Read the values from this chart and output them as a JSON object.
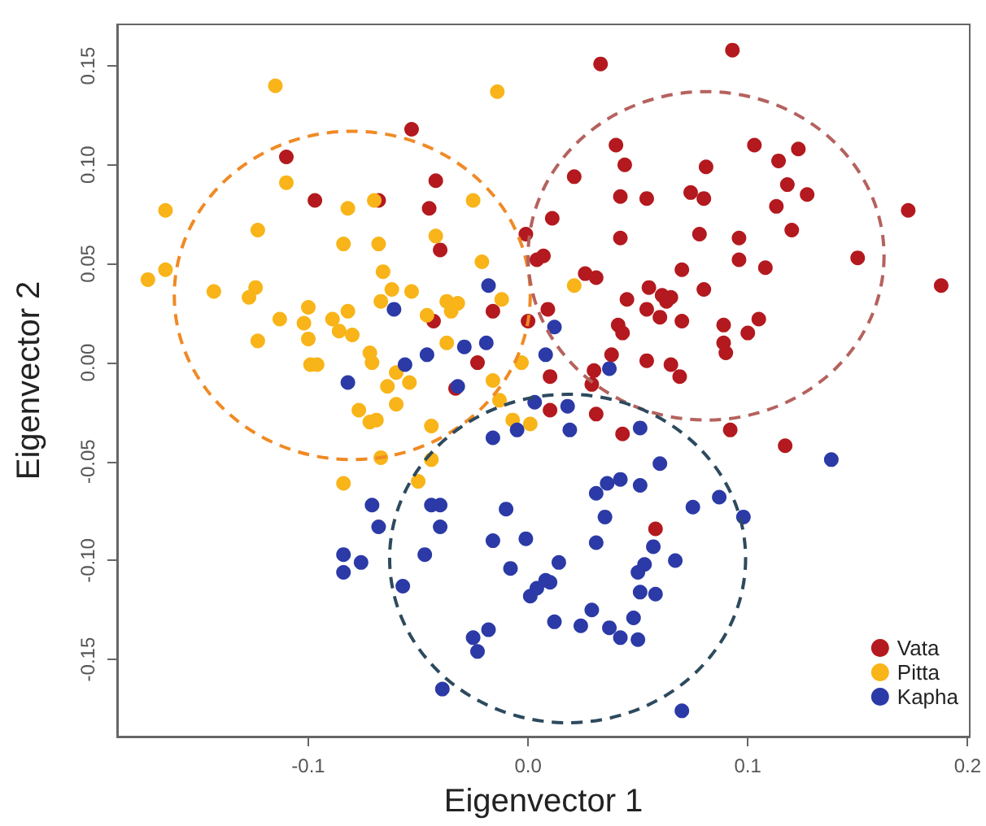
{
  "chart_data": {
    "type": "scatter",
    "xlabel": "Eigenvector 1",
    "ylabel": "Eigenvector 2",
    "xlim": [
      -0.187,
      0.201
    ],
    "ylim": [
      -0.189,
      0.171
    ],
    "xticks": [
      -0.1,
      {
        "value": 0,
        "label": "0.0"
      },
      0.1,
      0.2
    ],
    "yticks": [
      -0.15,
      {
        "value": -0.1,
        "label": "-0.10"
      },
      -0.05,
      {
        "value": 0,
        "label": "0.00"
      },
      0.05,
      {
        "value": 0.1,
        "label": "0.10"
      },
      0.15
    ],
    "grid": false,
    "legend": "bottom right",
    "marker": "circle",
    "series": [
      {
        "name": "Vata",
        "color": "#b3191e",
        "x": [
          -0.053,
          -0.11,
          -0.097,
          -0.068,
          -0.042,
          -0.045,
          -0.04,
          -0.001,
          -0.016,
          -0.043,
          0.0,
          -0.023,
          -0.033,
          0.033,
          0.093,
          0.04,
          0.044,
          0.021,
          0.103,
          0.123,
          0.114,
          0.081,
          0.118,
          0.127,
          0.074,
          0.08,
          0.042,
          0.054,
          0.113,
          0.173,
          0.011,
          0.042,
          0.078,
          0.096,
          0.12,
          0.096,
          0.108,
          0.15,
          0.188,
          0.004,
          0.007,
          0.07,
          0.026,
          0.031,
          0.045,
          0.055,
          0.061,
          0.065,
          0.063,
          0.08,
          0.054,
          0.06,
          0.07,
          0.041,
          0.043,
          0.089,
          0.105,
          0.1,
          0.089,
          0.09,
          0.009,
          0.038,
          0.01,
          0.03,
          0.054,
          0.065,
          0.069,
          0.029,
          0.01,
          0.031,
          0.043,
          0.092,
          0.117,
          0.058
        ],
        "values": [
          0.118,
          0.104,
          0.082,
          0.082,
          0.092,
          0.078,
          0.057,
          0.065,
          0.026,
          0.021,
          0.021,
          0.0,
          -0.013,
          0.151,
          0.158,
          0.11,
          0.1,
          0.094,
          0.11,
          0.108,
          0.102,
          0.099,
          0.09,
          0.085,
          0.086,
          0.083,
          0.084,
          0.083,
          0.079,
          0.077,
          0.073,
          0.063,
          0.065,
          0.063,
          0.067,
          0.052,
          0.048,
          0.053,
          0.039,
          0.052,
          0.054,
          0.047,
          0.045,
          0.043,
          0.032,
          0.038,
          0.034,
          0.033,
          0.031,
          0.037,
          0.027,
          0.023,
          0.021,
          0.019,
          0.015,
          0.019,
          0.022,
          0.015,
          0.01,
          0.005,
          0.027,
          0.004,
          -0.007,
          -0.004,
          0.001,
          -0.001,
          -0.007,
          -0.011,
          -0.024,
          -0.026,
          -0.036,
          -0.034,
          -0.042,
          -0.084
        ]
      },
      {
        "name": "Pitta",
        "color": "#f8b418",
        "x": [
          -0.115,
          -0.014,
          -0.11,
          -0.165,
          -0.082,
          -0.07,
          -0.025,
          -0.123,
          -0.084,
          -0.068,
          -0.042,
          -0.021,
          -0.066,
          -0.173,
          -0.165,
          -0.143,
          -0.124,
          -0.127,
          -0.1,
          -0.062,
          -0.053,
          -0.067,
          -0.082,
          -0.113,
          -0.102,
          -0.089,
          -0.1,
          -0.086,
          -0.08,
          -0.123,
          -0.046,
          -0.037,
          -0.032,
          -0.035,
          -0.012,
          -0.037,
          -0.072,
          -0.071,
          -0.099,
          -0.096,
          -0.06,
          -0.054,
          -0.064,
          -0.016,
          -0.003,
          0.021,
          -0.06,
          -0.077,
          -0.072,
          -0.069,
          -0.044,
          -0.013,
          -0.007,
          0.001,
          -0.067,
          -0.044,
          -0.05,
          -0.084
        ],
        "values": [
          0.14,
          0.137,
          0.091,
          0.077,
          0.078,
          0.082,
          0.082,
          0.067,
          0.06,
          0.06,
          0.064,
          0.051,
          0.046,
          0.042,
          0.047,
          0.036,
          0.038,
          0.033,
          0.028,
          0.037,
          0.036,
          0.031,
          0.026,
          0.022,
          0.02,
          0.022,
          0.012,
          0.016,
          0.014,
          0.011,
          0.024,
          0.031,
          0.03,
          0.026,
          0.032,
          0.01,
          0.005,
          0.0,
          -0.001,
          -0.001,
          -0.005,
          -0.01,
          -0.012,
          -0.009,
          0.0,
          0.039,
          -0.021,
          -0.024,
          -0.03,
          -0.029,
          -0.032,
          -0.019,
          -0.029,
          -0.031,
          -0.048,
          -0.049,
          -0.06,
          -0.061
        ]
      },
      {
        "name": "Kapha",
        "color": "#2b3aa6",
        "x": [
          -0.018,
          -0.061,
          -0.046,
          -0.056,
          -0.029,
          -0.019,
          0.008,
          -0.082,
          -0.032,
          0.012,
          0.037,
          0.003,
          -0.005,
          -0.016,
          -0.071,
          -0.044,
          -0.04,
          -0.068,
          -0.04,
          -0.01,
          -0.016,
          -0.001,
          -0.084,
          -0.084,
          -0.076,
          -0.047,
          -0.008,
          -0.057,
          0.001,
          0.004,
          0.008,
          -0.018,
          -0.025,
          -0.023,
          -0.039,
          0.018,
          0.019,
          0.051,
          0.06,
          0.138,
          0.036,
          0.042,
          0.031,
          0.051,
          0.087,
          0.075,
          0.098,
          0.035,
          0.031,
          0.057,
          0.067,
          0.014,
          0.053,
          0.05,
          0.01,
          0.051,
          0.058,
          0.029,
          0.012,
          0.024,
          0.037,
          0.048,
          0.042,
          0.05,
          0.07
        ],
        "values": [
          0.039,
          0.027,
          0.004,
          -0.001,
          0.008,
          0.01,
          0.004,
          -0.01,
          -0.012,
          0.018,
          -0.003,
          -0.02,
          -0.034,
          -0.038,
          -0.072,
          -0.072,
          -0.072,
          -0.083,
          -0.083,
          -0.074,
          -0.09,
          -0.089,
          -0.097,
          -0.106,
          -0.101,
          -0.097,
          -0.104,
          -0.113,
          -0.118,
          -0.114,
          -0.11,
          -0.135,
          -0.139,
          -0.146,
          -0.165,
          -0.022,
          -0.034,
          -0.033,
          -0.051,
          -0.049,
          -0.061,
          -0.059,
          -0.066,
          -0.062,
          -0.068,
          -0.073,
          -0.078,
          -0.078,
          -0.091,
          -0.093,
          -0.1,
          -0.101,
          -0.102,
          -0.106,
          -0.111,
          -0.116,
          -0.117,
          -0.125,
          -0.131,
          -0.133,
          -0.134,
          -0.129,
          -0.139,
          -0.14,
          -0.176
        ]
      }
    ]
  }
}
